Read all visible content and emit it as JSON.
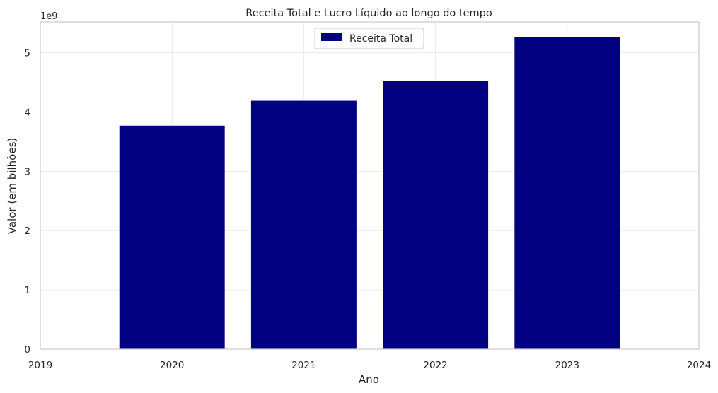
{
  "chart_data": {
    "type": "bar",
    "title": "Receita Total e Lucro Líquido ao longo do tempo",
    "xlabel": "Ano",
    "ylabel": "Valor (em bilhões)",
    "y_offset_label": "1e9",
    "categories": [
      "2020",
      "2021",
      "2022",
      "2023"
    ],
    "x_values": [
      2020,
      2021,
      2022,
      2023
    ],
    "series": [
      {
        "name": "Receita Total",
        "values": [
          3.77,
          4.19,
          4.53,
          5.26
        ],
        "color": "#000080"
      }
    ],
    "bar_width": 0.8,
    "xlim": [
      2019,
      2024
    ],
    "xticks": [
      "2019",
      "2020",
      "2021",
      "2022",
      "2023",
      "2024"
    ],
    "ylim": [
      0,
      5.52
    ],
    "yticks": [
      "0",
      "1",
      "2",
      "3",
      "4",
      "5"
    ],
    "grid": true,
    "legend_position": "top-center",
    "colors": {
      "grid": "#ebebeb",
      "spine": "#cccccc",
      "text": "#262626"
    }
  }
}
